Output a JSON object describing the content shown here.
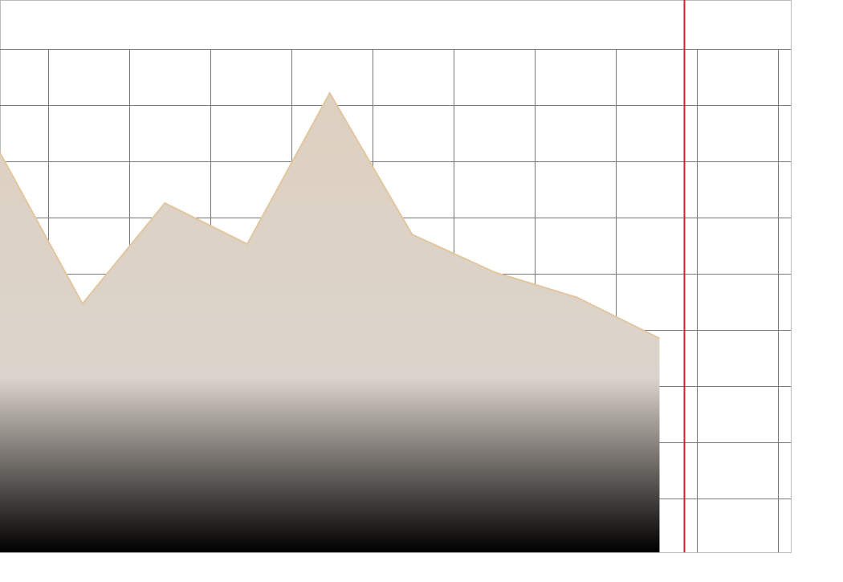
{
  "chart_data": {
    "type": "area",
    "title": "",
    "xlabel": "",
    "ylabel": "",
    "x": [
      0,
      1,
      2,
      3,
      4,
      5,
      6,
      7,
      8
    ],
    "series": [
      {
        "values": [
          3.85,
          1.45,
          3.05,
          2.4,
          4.8,
          2.55,
          1.95,
          1.55,
          0.9
        ]
      }
    ],
    "xlim": [
      0,
      8.2
    ],
    "ylim": [
      -2.5,
      5.5
    ],
    "grid": true,
    "legend": "none",
    "colors": {
      "line": "#e2c6a0",
      "fill_top": "#ddd0c0",
      "fill_mid": "#dcd4cc",
      "fill_bottom": "#000000",
      "grid": "#777777",
      "frame": "#bbbbbb",
      "marker_line": "#cc2233"
    },
    "marker_x": 8.3
  }
}
